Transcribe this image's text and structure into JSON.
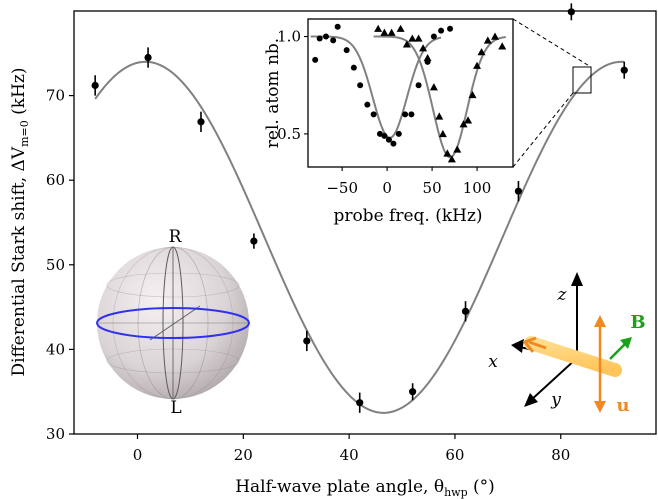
{
  "chart_data": [
    {
      "type": "scatter",
      "xlabel": "Half-wave plate angle, θ",
      "xlabel_sub": "hwp",
      "xlabel_unit": " (°)",
      "ylabel": "Differential Stark shift, ΔV",
      "ylabel_sub": "m=0",
      "ylabel_unit": " (kHz)",
      "xlim": [
        -12,
        98
      ],
      "ylim": [
        30,
        80
      ],
      "x_ticks": [
        0,
        20,
        40,
        60,
        80
      ],
      "y_ticks": [
        30,
        40,
        50,
        60,
        70
      ],
      "points": [
        {
          "x": -8,
          "y": 71.2,
          "err": 1.2
        },
        {
          "x": 2,
          "y": 74.5,
          "err": 1.2
        },
        {
          "x": 12,
          "y": 66.9,
          "err": 1.2
        },
        {
          "x": 22,
          "y": 52.8,
          "err": 0.9
        },
        {
          "x": 32,
          "y": 41.0,
          "err": 1.2
        },
        {
          "x": 42,
          "y": 33.7,
          "err": 1.2
        },
        {
          "x": 52,
          "y": 35.0,
          "err": 1.0
        },
        {
          "x": 62,
          "y": 44.5,
          "err": 1.2
        },
        {
          "x": 72,
          "y": 58.7,
          "err": 1.2
        },
        {
          "x": 82,
          "y": 79.9,
          "err": 1.0
        },
        {
          "x": 92,
          "y": 73.0,
          "err": 1.0
        }
      ],
      "fit": {
        "offset": 53.25,
        "amplitude": 20.75,
        "phase_deg": 1.5,
        "period_deg": 90
      }
    },
    {
      "type": "scatter",
      "role": "inset",
      "xlabel": "probe freq. (kHz)",
      "ylabel": "rel. atom nb.",
      "xlim": [
        -88,
        140
      ],
      "ylim": [
        0.33,
        1.09
      ],
      "x_ticks": [
        -50,
        0,
        50,
        100
      ],
      "y_ticks": [
        0.5,
        1.0
      ],
      "x_tick_labels": [
        "−50",
        "0",
        "50",
        "100"
      ],
      "y_tick_labels": [
        "0.5",
        "1.0"
      ],
      "series": [
        {
          "marker": "circle",
          "points": [
            [
              -80,
              0.88
            ],
            [
              -75,
              0.99
            ],
            [
              -68,
              1.0
            ],
            [
              -60,
              0.98
            ],
            [
              -55,
              1.05
            ],
            [
              -45,
              0.93
            ],
            [
              -37,
              0.84
            ],
            [
              -30,
              0.75
            ],
            [
              -22,
              0.65
            ],
            [
              -15,
              0.6
            ],
            [
              -8,
              0.5
            ],
            [
              -3,
              0.49
            ],
            [
              2,
              0.47
            ],
            [
              7,
              0.45
            ],
            [
              13,
              0.5
            ],
            [
              20,
              0.6
            ],
            [
              27,
              0.6
            ],
            [
              35,
              0.75
            ],
            [
              45,
              0.87
            ],
            [
              52,
              1.0
            ],
            [
              60,
              1.03
            ],
            [
              70,
              1.04
            ]
          ],
          "fit": {
            "center": 3,
            "depth": 0.52,
            "width": 28
          }
        },
        {
          "marker": "triangle",
          "points": [
            [
              -10,
              1.04
            ],
            [
              -3,
              1.02
            ],
            [
              5,
              1.02
            ],
            [
              15,
              1.04
            ],
            [
              22,
              0.96
            ],
            [
              28,
              0.99
            ],
            [
              35,
              0.99
            ],
            [
              40,
              0.94
            ],
            [
              45,
              0.89
            ],
            [
              52,
              0.74
            ],
            [
              58,
              0.59
            ],
            [
              62,
              0.5
            ],
            [
              67,
              0.4
            ],
            [
              72,
              0.37
            ],
            [
              78,
              0.42
            ],
            [
              85,
              0.55
            ],
            [
              90,
              0.57
            ],
            [
              95,
              0.7
            ],
            [
              100,
              0.85
            ],
            [
              105,
              0.92
            ],
            [
              112,
              0.98
            ],
            [
              120,
              1.0
            ],
            [
              128,
              0.95
            ]
          ],
          "fit": {
            "center": 70,
            "depth": 0.62,
            "width": 28
          }
        }
      ]
    }
  ],
  "diagram": {
    "sphere_top_label": "R",
    "sphere_bottom_label": "L",
    "axis_z": "z",
    "axis_x": "x",
    "axis_y": "y",
    "vector_B": "B",
    "vector_u": "u",
    "colors": {
      "B": "#1aa01a",
      "u": "#f08a20",
      "beam": "#ffcf70",
      "equator": "#3030ee",
      "fit": "#808080"
    }
  }
}
